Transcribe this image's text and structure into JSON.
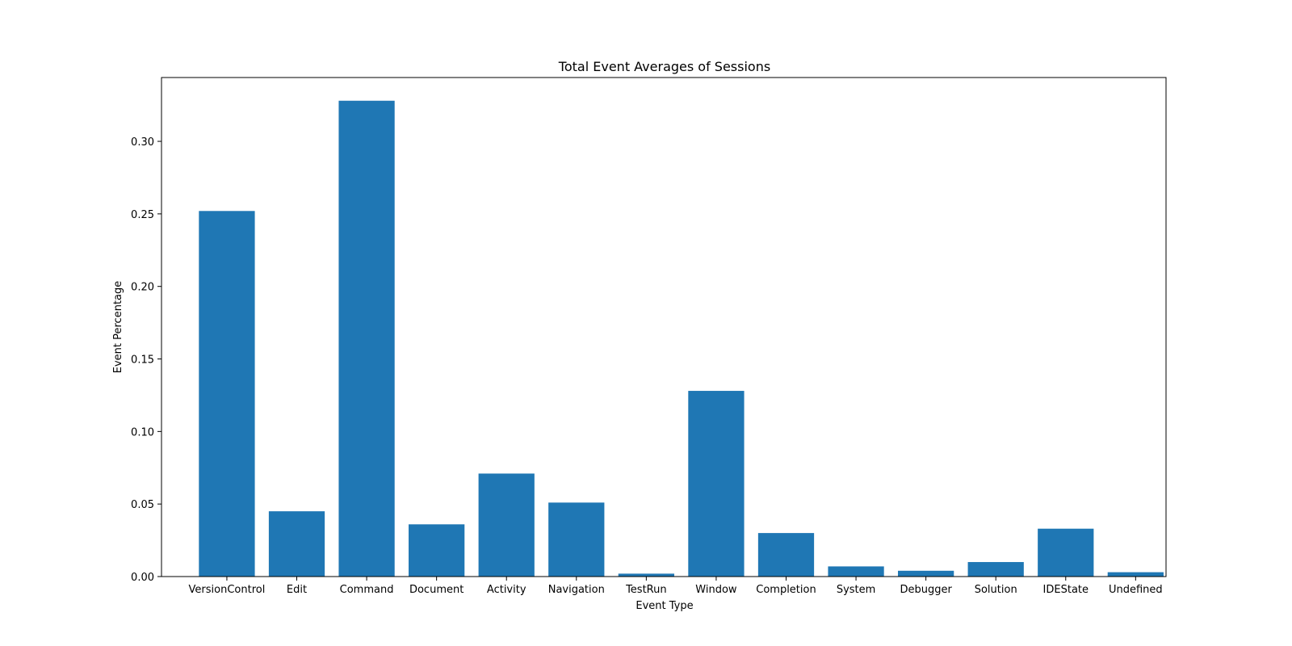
{
  "chart_data": {
    "type": "bar",
    "title": "Total Event Averages of Sessions",
    "xlabel": "Event Type",
    "ylabel": "Event Percentage",
    "categories": [
      "VersionControl",
      "Edit",
      "Command",
      "Document",
      "Activity",
      "Navigation",
      "TestRun",
      "Window",
      "Completion",
      "System",
      "Debugger",
      "Solution",
      "IDEState",
      "Undefined"
    ],
    "values": [
      0.252,
      0.045,
      0.328,
      0.036,
      0.071,
      0.051,
      0.002,
      0.128,
      0.03,
      0.007,
      0.004,
      0.01,
      0.033,
      0.003
    ],
    "yticks": [
      0.0,
      0.05,
      0.1,
      0.15,
      0.2,
      0.25,
      0.3
    ],
    "ytick_labels": [
      "0.00",
      "0.05",
      "0.10",
      "0.15",
      "0.20",
      "0.25",
      "0.30"
    ],
    "ylim": [
      0,
      0.344
    ],
    "grid": false,
    "bar_color": "#1f77b4"
  }
}
